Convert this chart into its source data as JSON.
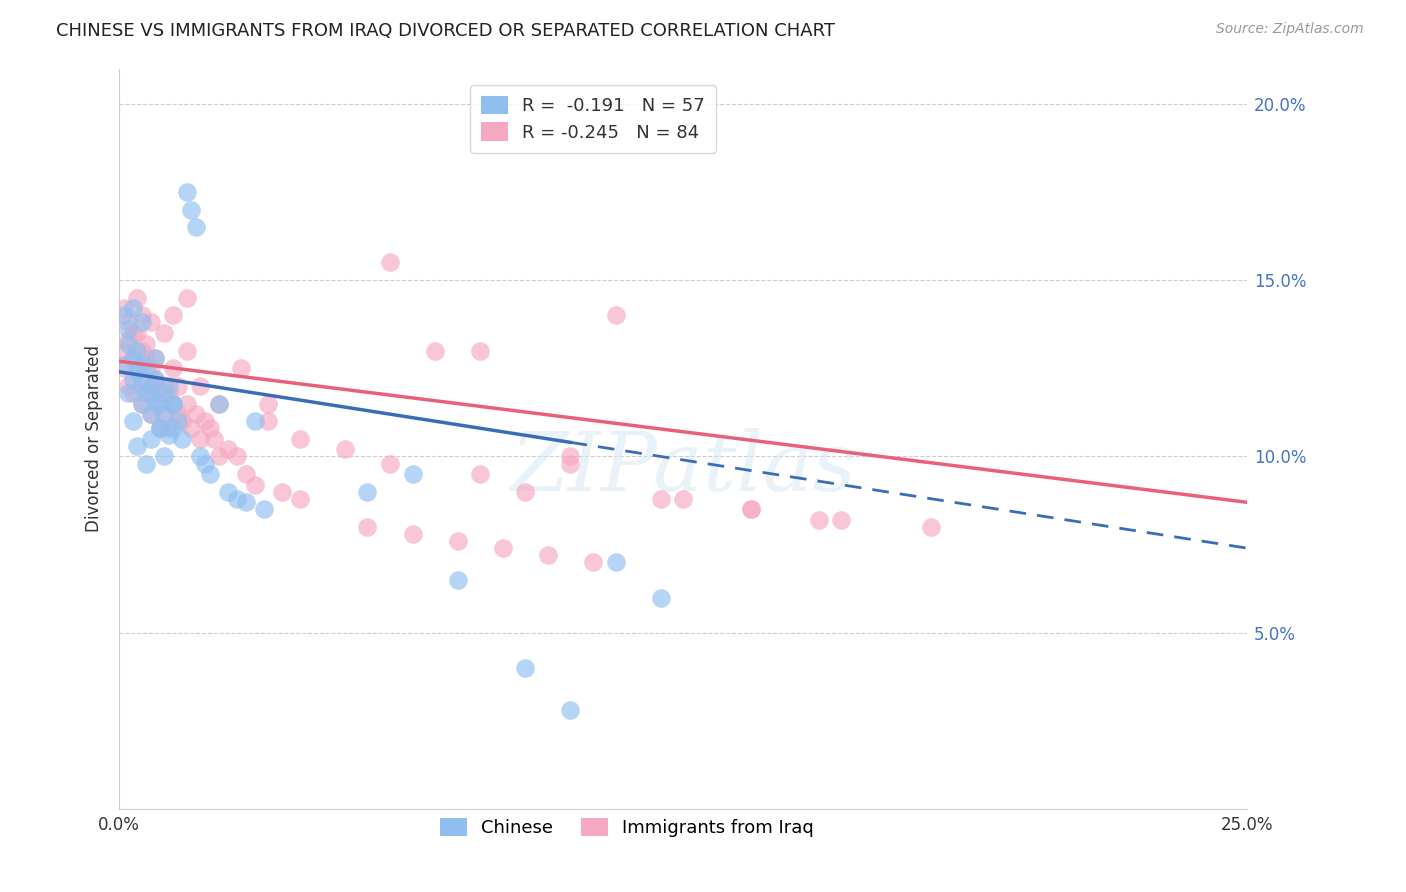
{
  "title": "CHINESE VS IMMIGRANTS FROM IRAQ DIVORCED OR SEPARATED CORRELATION CHART",
  "source": "Source: ZipAtlas.com",
  "ylabel": "Divorced or Separated",
  "xlim": [
    0.0,
    0.25
  ],
  "ylim": [
    0.0,
    0.21
  ],
  "yticks": [
    0.05,
    0.1,
    0.15,
    0.2
  ],
  "ytick_labels": [
    "5.0%",
    "10.0%",
    "15.0%",
    "20.0%"
  ],
  "xtick_labels": [
    "0.0%",
    "",
    "",
    "",
    "",
    "25.0%"
  ],
  "legend_r_chinese": "-0.191",
  "legend_n_chinese": "57",
  "legend_r_iraq": "-0.245",
  "legend_n_iraq": "84",
  "watermark": "ZIPatlas",
  "color_chinese": "#90BEF0",
  "color_iraq": "#F5A8C0",
  "color_chinese_line": "#3A6DB5",
  "color_iraq_line": "#E8607A",
  "chinese_x": [
    0.001,
    0.002,
    0.002,
    0.003,
    0.003,
    0.003,
    0.004,
    0.004,
    0.005,
    0.005,
    0.005,
    0.006,
    0.006,
    0.007,
    0.007,
    0.008,
    0.008,
    0.008,
    0.009,
    0.009,
    0.01,
    0.01,
    0.011,
    0.011,
    0.012,
    0.012,
    0.013,
    0.014,
    0.015,
    0.016,
    0.017,
    0.018,
    0.019,
    0.02,
    0.022,
    0.024,
    0.026,
    0.028,
    0.03,
    0.032,
    0.001,
    0.002,
    0.003,
    0.004,
    0.005,
    0.006,
    0.007,
    0.009,
    0.01,
    0.012,
    0.055,
    0.065,
    0.075,
    0.09,
    0.1,
    0.11,
    0.12
  ],
  "chinese_y": [
    0.126,
    0.132,
    0.118,
    0.122,
    0.128,
    0.11,
    0.124,
    0.13,
    0.12,
    0.126,
    0.115,
    0.118,
    0.125,
    0.112,
    0.12,
    0.116,
    0.122,
    0.128,
    0.115,
    0.108,
    0.118,
    0.112,
    0.12,
    0.106,
    0.115,
    0.108,
    0.11,
    0.105,
    0.175,
    0.17,
    0.165,
    0.1,
    0.098,
    0.095,
    0.115,
    0.09,
    0.088,
    0.087,
    0.11,
    0.085,
    0.14,
    0.136,
    0.142,
    0.103,
    0.138,
    0.098,
    0.105,
    0.108,
    0.1,
    0.115,
    0.09,
    0.095,
    0.065,
    0.04,
    0.028,
    0.07,
    0.06
  ],
  "iraq_x": [
    0.001,
    0.001,
    0.002,
    0.002,
    0.003,
    0.003,
    0.004,
    0.004,
    0.005,
    0.005,
    0.005,
    0.006,
    0.006,
    0.007,
    0.007,
    0.007,
    0.008,
    0.008,
    0.009,
    0.009,
    0.01,
    0.01,
    0.011,
    0.011,
    0.012,
    0.012,
    0.013,
    0.013,
    0.014,
    0.015,
    0.015,
    0.016,
    0.017,
    0.018,
    0.019,
    0.02,
    0.021,
    0.022,
    0.024,
    0.026,
    0.028,
    0.03,
    0.033,
    0.036,
    0.04,
    0.001,
    0.002,
    0.003,
    0.004,
    0.005,
    0.006,
    0.007,
    0.008,
    0.01,
    0.012,
    0.015,
    0.018,
    0.022,
    0.027,
    0.033,
    0.04,
    0.05,
    0.06,
    0.07,
    0.08,
    0.09,
    0.1,
    0.11,
    0.125,
    0.14,
    0.16,
    0.18,
    0.06,
    0.08,
    0.1,
    0.12,
    0.14,
    0.155,
    0.055,
    0.065,
    0.075,
    0.085,
    0.095,
    0.105
  ],
  "iraq_y": [
    0.13,
    0.125,
    0.133,
    0.12,
    0.128,
    0.118,
    0.125,
    0.135,
    0.122,
    0.13,
    0.115,
    0.128,
    0.118,
    0.125,
    0.112,
    0.12,
    0.122,
    0.115,
    0.118,
    0.108,
    0.12,
    0.112,
    0.118,
    0.108,
    0.115,
    0.14,
    0.112,
    0.12,
    0.11,
    0.145,
    0.115,
    0.108,
    0.112,
    0.105,
    0.11,
    0.108,
    0.105,
    0.1,
    0.102,
    0.1,
    0.095,
    0.092,
    0.115,
    0.09,
    0.088,
    0.142,
    0.138,
    0.135,
    0.145,
    0.14,
    0.132,
    0.138,
    0.128,
    0.135,
    0.125,
    0.13,
    0.12,
    0.115,
    0.125,
    0.11,
    0.105,
    0.102,
    0.098,
    0.13,
    0.095,
    0.09,
    0.098,
    0.14,
    0.088,
    0.085,
    0.082,
    0.08,
    0.155,
    0.13,
    0.1,
    0.088,
    0.085,
    0.082,
    0.08,
    0.078,
    0.076,
    0.074,
    0.072,
    0.07
  ]
}
